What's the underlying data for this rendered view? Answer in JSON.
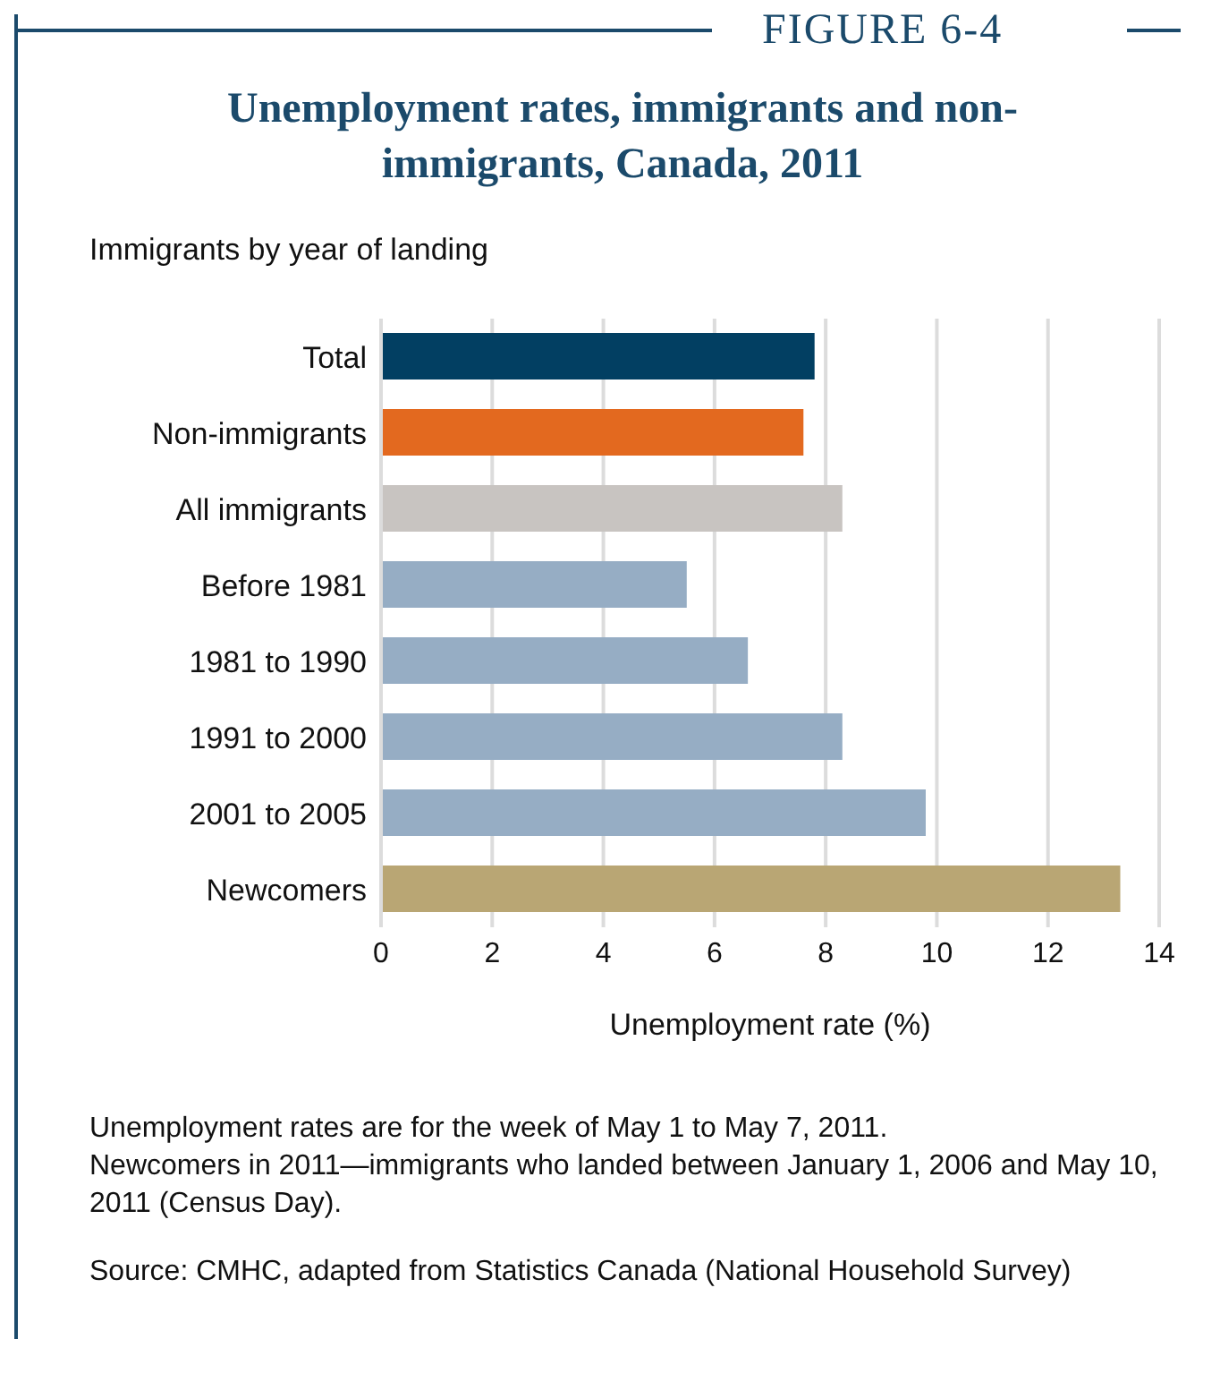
{
  "chart_data": {
    "type": "bar",
    "orientation": "horizontal",
    "title": "Unemployment rates, immigrants and non-immigrants, Canada, 2011",
    "ylabel": "Immigrants by year of landing",
    "xlabel": "Unemployment rate (%)",
    "categories": [
      "Total",
      "Non-immigrants",
      "All immigrants",
      "Before 1981",
      "1981 to 1990",
      "1991 to 2000",
      "2001 to 2005",
      "Newcomers"
    ],
    "values": [
      7.8,
      7.6,
      8.3,
      5.5,
      6.6,
      8.3,
      9.8,
      13.3
    ],
    "colors": [
      "#023f62",
      "#e3691f",
      "#c8c4c1",
      "#96adc4",
      "#96adc4",
      "#96adc4",
      "#96adc4",
      "#b9a674"
    ],
    "xlim": [
      0,
      14
    ],
    "xticks": [
      0,
      2,
      4,
      6,
      8,
      10,
      12,
      14
    ],
    "grid": "x",
    "legend": false,
    "annotations": [
      "FIGURE 6-4",
      "Unemployment rates are for the week of May 1 to May 7, 2011.",
      "Newcomers in 2011—immigrants who landed between January 1, 2006 and May 10, 2011 (Census Day).",
      "Source: CMHC, adapted from Statistics Canada (National Household Survey)"
    ]
  }
}
